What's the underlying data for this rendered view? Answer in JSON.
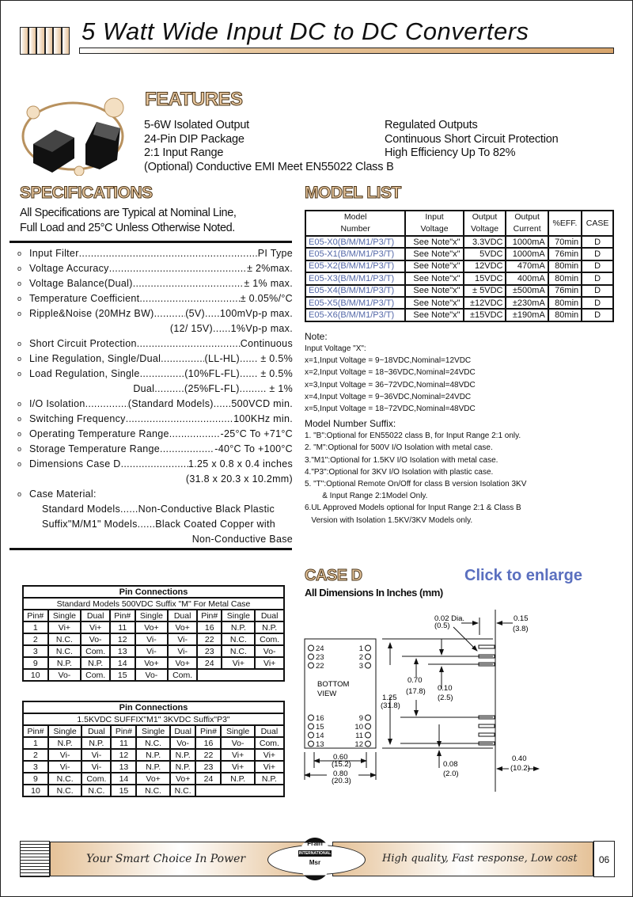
{
  "header": {
    "title": "5 Watt Wide Input DC to DC Converters"
  },
  "features": {
    "heading": "FEATURES",
    "left": [
      "5-6W Isolated Output",
      "24-Pin DIP Package",
      "2:1 Input Range",
      "(Optional) Conductive EMI Meet EN55022  Class  B"
    ],
    "right": [
      "Regulated Outputs",
      "Continuous Short Circuit Protection",
      "High Efficiency Up To 82%"
    ]
  },
  "specifications": {
    "heading": "SPECIFICATIONS",
    "subtitle": [
      "All Specifications are Typical at Nominal Line,",
      "Full Load and 25°C Unless Otherwise Noted."
    ],
    "items": [
      {
        "label": "Input Filter",
        "value": "PI Type"
      },
      {
        "label": "Voltage Accuracy",
        "value": "± 2%max."
      },
      {
        "label": "Voltage Balance(Dual)",
        "value": "± 1% max."
      },
      {
        "label": "Temperature Coefficient",
        "value": "± 0.05%/°C"
      },
      {
        "label": "Ripple&Noise (20MHz BW)",
        "value": "(5V).....100mVp-p max.",
        "cont": "(12/ 15V)......1%Vp-p max."
      },
      {
        "label": "Short Circuit Protection",
        "value": "Continuous"
      },
      {
        "label": "Line Regulation, Single/Dual ",
        "value": "(LL-HL)...... ± 0.5%"
      },
      {
        "label": "Load Regulation, Single",
        "value": "(10%FL-FL)...... ± 0.5%",
        "cont": "Dual..........(25%FL-FL)......... ± 1%"
      },
      {
        "label": "I/O Isolation",
        "value": "(Standard  Models)......500VCD min."
      },
      {
        "label": "Switching Frequency",
        "value": "100KHz min."
      },
      {
        "label": "Operating Temperature Range",
        "value": "-25°C To +71°C"
      },
      {
        "label": "Storage Temperature Range",
        "value": "-40°C To +100°C"
      },
      {
        "label": "Dimensions Case D",
        "value": "1.25 x 0.8 x 0.4 inches",
        "cont": "(31.8 x 20.3 x 10.2mm)"
      }
    ],
    "case_material": {
      "label": "Case Material:",
      "lines": [
        "Standard Models......Non-Conductive Black Plastic",
        "Suffix\"M/M1\" Models......Black Coated Copper with",
        "Non-Conductive Base"
      ]
    }
  },
  "model_list": {
    "heading": "MODEL LIST",
    "columns": [
      [
        "Model",
        "Number"
      ],
      [
        "Input",
        "Voltage"
      ],
      [
        "Output",
        "Voltage"
      ],
      [
        "Output",
        "Current"
      ],
      [
        "%EFF.",
        ""
      ],
      [
        "CASE",
        ""
      ]
    ],
    "rows": [
      [
        "E05-X0(B/M/M1/P3/T)",
        "See Note\"x\"",
        "3.3VDC",
        "1000mA",
        "70min",
        "D"
      ],
      [
        "E05-X1(B/M/M1/P3/T)",
        "See Note\"x\"",
        "5VDC",
        "1000mA",
        "76min",
        "D"
      ],
      [
        "E05-X2(B/M/M1/P3/T)",
        "See Note\"x\"",
        "12VDC",
        "470mA",
        "80min",
        "D"
      ],
      [
        "E05-X3(B/M/M1/P3/T)",
        "See Note\"x\"",
        "15VDC",
        "400mA",
        "80min",
        "D"
      ],
      [
        "E05-X4(B/M/M1/P3/T)",
        "See Note\"x\"",
        "± 5VDC",
        "±500mA",
        "76min",
        "D"
      ],
      [
        "E05-X5(B/M/M1/P3/T)",
        "See Note\"x\"",
        "±12VDC",
        "±230mA",
        "80min",
        "D"
      ],
      [
        "E05-X6(B/M/M1/P3/T)",
        "See Note\"x\"",
        "±15VDC",
        "±190mA",
        "80min",
        "D"
      ]
    ]
  },
  "notes": {
    "heading": "Note:",
    "input_title": "Input Voltage \"X\":",
    "input_lines": [
      "x=1,Input Voltage =   9~18VDC,Nominal=12VDC",
      "x=2,Input Voltage = 18~36VDC,Nominal=24VDC",
      "x=3,Input Voltage = 36~72VDC,Nominal=48VDC",
      "x=4,Input Voltage =   9~36VDC,Nominal=24VDC",
      "x=5,Input Voltage = 18~72VDC,Nominal=48VDC"
    ],
    "suffix_title": "Model Number Suffix:",
    "suffix_lines": [
      "1. \"B\":Optional for EN55022 class B, for Input Range 2:1 only.",
      "2. \"M\":Optional for 500V I/O Isolation with metal case.",
      "3.\"M1\":Optional for 1.5KV I/O Isolation with metal case.",
      "4.\"P3\":Optional for 3KV I/O Isolation with plastic case.",
      "5. \"T\":Optional Remote On/Off for class B version Isolation 3KV",
      "        & Input Range 2:1Model Only.",
      "6.UL Approved Models optional for Input Range 2:1 & Class B",
      "   Version with Isolation 1.5KV/3KV Models only."
    ]
  },
  "pin_tables": [
    {
      "title": "Pin Connections",
      "subtitle": "Standard Models 500VDC Suffix \"M\" For Metal Case",
      "header": [
        "Pin#",
        "Single",
        "Dual",
        "Pin#",
        "Single",
        "Dual",
        "Pin#",
        "Single",
        "Dual"
      ],
      "rows": [
        [
          "1",
          "Vi+",
          "Vi+",
          "11",
          "Vo+",
          "Vo+",
          "16",
          "N.P.",
          "N.P."
        ],
        [
          "2",
          "N.C.",
          "Vo-",
          "12",
          "Vi-",
          "Vi-",
          "22",
          "N.C.",
          "Com."
        ],
        [
          "3",
          "N.C.",
          "Com.",
          "13",
          "Vi-",
          "Vi-",
          "23",
          "N.C.",
          "Vo-"
        ],
        [
          "9",
          "N.P.",
          "N.P.",
          "14",
          "Vo+",
          "Vo+",
          "24",
          "Vi+",
          "Vi+"
        ],
        [
          "10",
          "Vo-",
          "Com.",
          "15",
          "Vo-",
          "Com.",
          "",
          "",
          ""
        ]
      ]
    },
    {
      "title": "Pin Connections",
      "subtitle": "1.5KVDC SUFFIX\"M1\" 3KVDC Suffix\"P3\"",
      "header": [
        "Pin#",
        "Single",
        "Dual",
        "Pin#",
        "Single",
        "Dual",
        "Pin#",
        "Single",
        "Dual"
      ],
      "rows": [
        [
          "1",
          "N.P.",
          "N.P.",
          "11",
          "N.C.",
          "Vo-",
          "16",
          "Vo-",
          "Com."
        ],
        [
          "2",
          "Vi-",
          "Vi-",
          "12",
          "N.P.",
          "N.P.",
          "22",
          "Vi+",
          "Vi+"
        ],
        [
          "3",
          "Vi-",
          "Vi-",
          "13",
          "N.P.",
          "N.P.",
          "23",
          "Vi+",
          "Vi+"
        ],
        [
          "9",
          "N.C.",
          "Com.",
          "14",
          "Vo+",
          "Vo+",
          "24",
          "N.P.",
          "N.P."
        ],
        [
          "10",
          "N.C.",
          "N.C.",
          "15",
          "N.C.",
          "N.C.",
          "",
          "",
          ""
        ]
      ]
    }
  ],
  "case_d": {
    "heading": "CASE D",
    "subtitle": "All Dimensions In Inches (mm)",
    "enlarge": "Click to enlarge",
    "view_label": [
      "BOTTOM",
      "VIEW"
    ],
    "pins_left": [
      "24",
      "23",
      "22",
      "16",
      "15",
      "14",
      "13"
    ],
    "pins_right": [
      "1",
      "2",
      "3",
      "9",
      "10",
      "11",
      "12"
    ],
    "dims": {
      "dia": [
        "0.02 Dia.",
        "(0.5)"
      ],
      "d015": [
        "0.15",
        "(3.8)"
      ],
      "d070": [
        "0.70",
        "(17.8)"
      ],
      "d010": [
        "0.10",
        "(2.5)"
      ],
      "d125": [
        "1.25",
        "(31.8)"
      ],
      "d060": [
        "0.60",
        "(15.2)"
      ],
      "d080": [
        "0.80",
        "(20.3)"
      ],
      "d008": [
        "0.08",
        "(2.0)"
      ],
      "d040": [
        "0.40",
        "(10.2)"
      ]
    }
  },
  "footer": {
    "slogan_left": "Your Smart Choice In Power",
    "slogan_right": "High quality, Fast response, Low cost",
    "logo": [
      "Frain",
      "INTERNATIONAL",
      "Msr"
    ],
    "page": "06",
    "accent": "#e5c298"
  }
}
